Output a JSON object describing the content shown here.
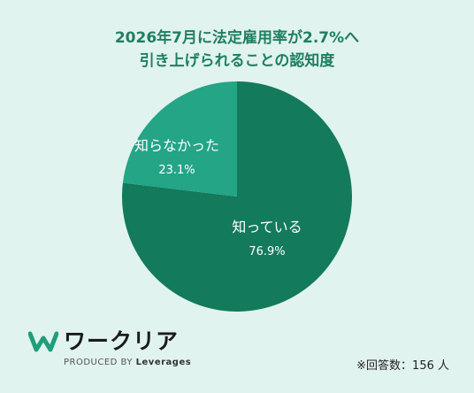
{
  "header": {
    "title_line1": "2026年7月に法定雇用率が2.7%へ",
    "title_line2": "引き上げられることの認知度"
  },
  "chart_data": {
    "type": "pie",
    "title": "2026年7月に法定雇用率が2.7%へ 引き上げられることの認知度",
    "slices": [
      {
        "label": "知っている",
        "value": 76.9,
        "display": "76.9%",
        "color": "#137a5c"
      },
      {
        "label": "知らなかった",
        "value": 23.1,
        "display": "23.1%",
        "color": "#23a586"
      }
    ],
    "start_angle_deg": 0,
    "direction": "clockwise"
  },
  "footer": {
    "brand_name": "ワークリア",
    "brand_sub_prefix": "PRODUCED BY ",
    "brand_sub_company": "Leverages",
    "note": "※回答数：156 人"
  },
  "colors": {
    "background": "#e1f3ef",
    "title": "#1f7f5f"
  }
}
